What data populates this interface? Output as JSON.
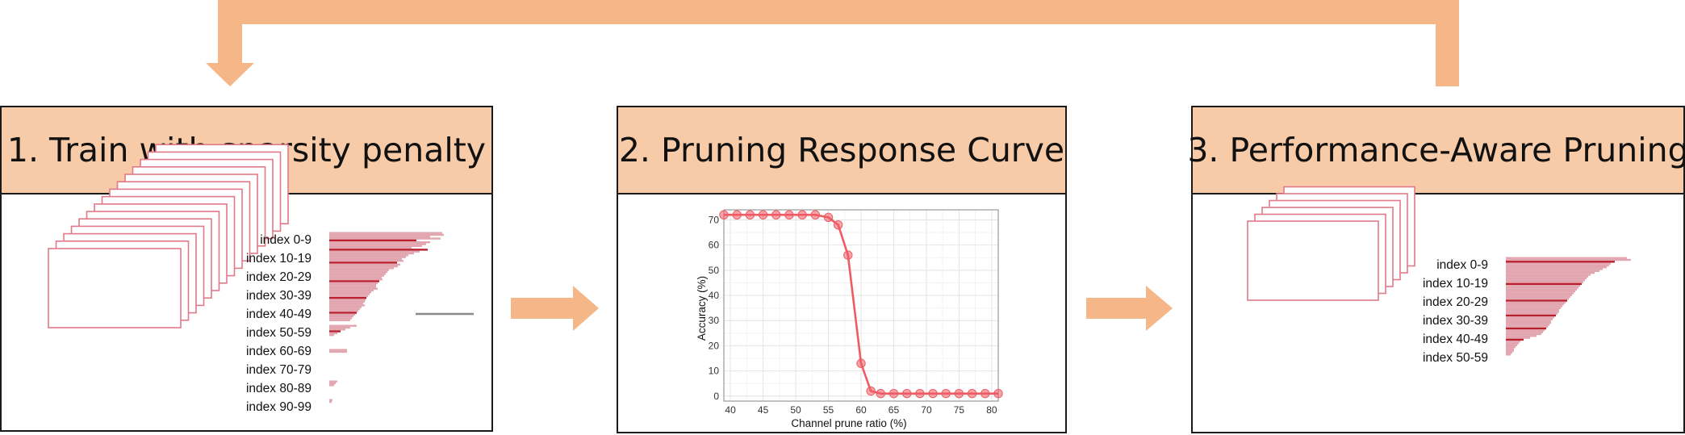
{
  "panels": [
    {
      "title": "1. Train with sparsity penalty"
    },
    {
      "title": "2. Pruning Response Curve"
    },
    {
      "title": "3. Performance-Aware Pruning"
    }
  ],
  "panel1": {
    "index_labels": [
      "index 0-9",
      "index 10-19",
      "index 20-29",
      "index 30-39",
      "index 40-49",
      "index 50-59",
      "index 60-69",
      "index 70-79",
      "index 80-89",
      "index 90-99"
    ]
  },
  "panel3": {
    "index_labels": [
      "index 0-9",
      "index 10-19",
      "index 20-29",
      "index 30-39",
      "index 40-49",
      "index 50-59"
    ]
  },
  "colors": {
    "arrow": "#f5b688",
    "header_fill": "#f8cba8",
    "stack_stroke": "#e07a88",
    "bar_dark": "#b8202e",
    "bar_light": "#e2a6b0",
    "curve": "#ee5b63"
  },
  "chart_data": {
    "type": "line",
    "xlabel": "Channel prune ratio (%)",
    "ylabel": "Accuracy (%)",
    "xlim": [
      39,
      81
    ],
    "ylim": [
      -2,
      74
    ],
    "xticks": [
      40,
      45,
      50,
      55,
      60,
      65,
      70,
      75,
      80
    ],
    "yticks": [
      0,
      10,
      20,
      30,
      40,
      50,
      60,
      70
    ],
    "grid": true,
    "x": [
      39,
      41,
      43,
      45,
      47,
      49,
      51,
      53,
      55,
      56.5,
      58,
      60,
      61.5,
      63,
      65,
      67,
      69,
      71,
      73,
      75,
      77,
      79,
      81
    ],
    "y": [
      72,
      72,
      72,
      72,
      72,
      72,
      72,
      72,
      71,
      68,
      56,
      13,
      2,
      1,
      1,
      1,
      1,
      1,
      1,
      1,
      1,
      1,
      1
    ]
  }
}
